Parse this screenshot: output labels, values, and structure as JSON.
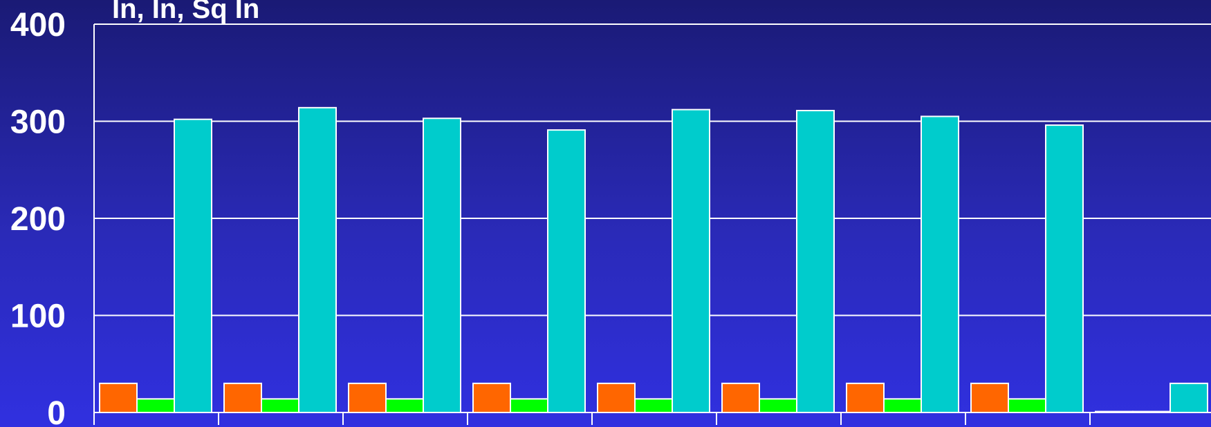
{
  "chart_data": {
    "type": "bar",
    "title": "",
    "unit_label": "In, In, Sq In",
    "xlabel": "",
    "ylabel": "",
    "ylim": [
      0,
      400
    ],
    "y_ticks": [
      "0",
      "100",
      "200",
      "300",
      "400"
    ],
    "grid": true,
    "categories": [
      "",
      "",
      "",
      "",
      "",
      "",
      "",
      "",
      ""
    ],
    "series": [
      {
        "color": "#ff6600",
        "values": [
          30,
          30,
          30,
          30,
          30,
          30,
          30,
          30,
          1
        ]
      },
      {
        "color": "#00ff00",
        "values": [
          14,
          14,
          14,
          14,
          14,
          14,
          14,
          14,
          1
        ]
      },
      {
        "color": "#00cccc",
        "values": [
          302,
          314,
          303,
          291,
          312,
          311,
          305,
          296,
          30
        ]
      }
    ]
  }
}
